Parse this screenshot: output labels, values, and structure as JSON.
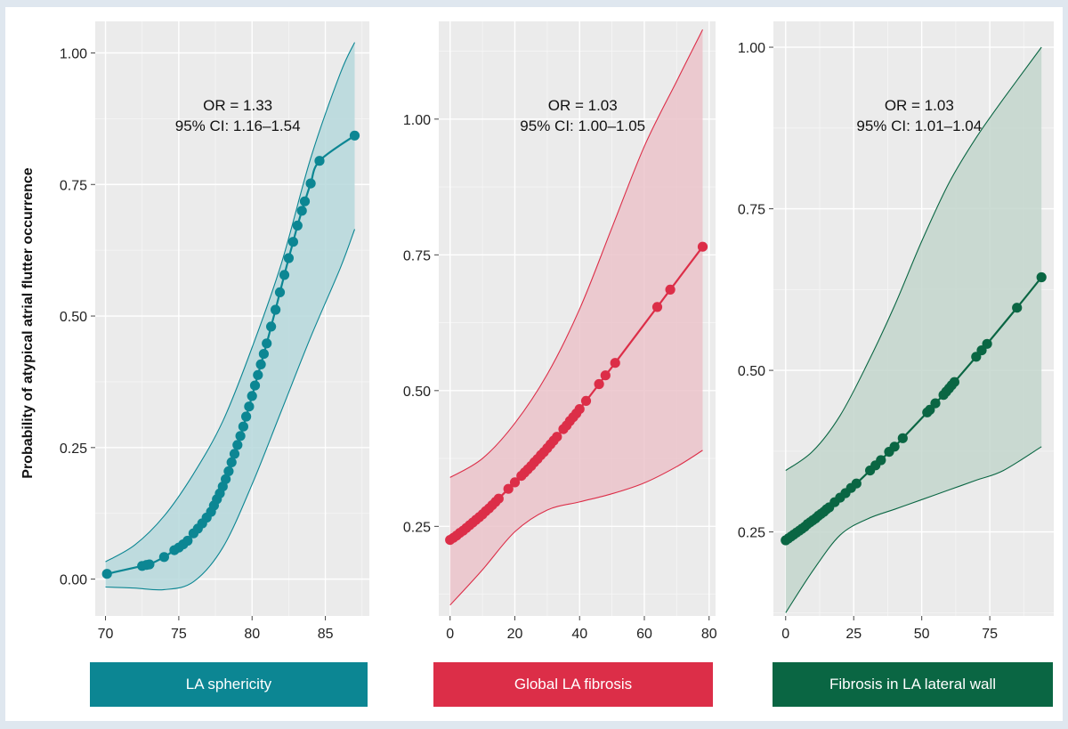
{
  "y_axis_label": "Probability of atypical atrial flutter occurrence",
  "chart_data": [
    {
      "type": "line",
      "name": "la-sphericity",
      "panel_label": "LA sphericity",
      "color": "#0c8693",
      "fill": "#b6d8dc",
      "annotation": [
        "OR = 1.33",
        "95% CI: 1.16–1.54"
      ],
      "xlim": [
        69.3,
        88.0
      ],
      "ylim": [
        -0.07,
        1.06
      ],
      "xticks": [
        70,
        75,
        80,
        85
      ],
      "xtick_labels": [
        "70",
        "75",
        "80",
        "85"
      ],
      "yticks": [
        0,
        0.25,
        0.5,
        0.75,
        1.0
      ],
      "ytick_labels": [
        "0.00",
        "0.25",
        "0.50",
        "0.75",
        "1.00"
      ],
      "points": [
        [
          70.1,
          0.01
        ],
        [
          72.5,
          0.025
        ],
        [
          72.8,
          0.027
        ],
        [
          73.0,
          0.028
        ],
        [
          74.0,
          0.042
        ],
        [
          74.7,
          0.055
        ],
        [
          75.0,
          0.06
        ],
        [
          75.3,
          0.066
        ],
        [
          75.6,
          0.073
        ],
        [
          76.0,
          0.087
        ],
        [
          76.3,
          0.096
        ],
        [
          76.6,
          0.106
        ],
        [
          76.9,
          0.117
        ],
        [
          77.2,
          0.128
        ],
        [
          77.4,
          0.14
        ],
        [
          77.6,
          0.152
        ],
        [
          77.8,
          0.163
        ],
        [
          78.0,
          0.176
        ],
        [
          78.2,
          0.19
        ],
        [
          78.4,
          0.205
        ],
        [
          78.6,
          0.222
        ],
        [
          78.8,
          0.238
        ],
        [
          79.0,
          0.255
        ],
        [
          79.2,
          0.272
        ],
        [
          79.4,
          0.29
        ],
        [
          79.6,
          0.309
        ],
        [
          79.8,
          0.328
        ],
        [
          80.0,
          0.348
        ],
        [
          80.2,
          0.368
        ],
        [
          80.4,
          0.388
        ],
        [
          80.6,
          0.408
        ],
        [
          80.8,
          0.428
        ],
        [
          81.0,
          0.448
        ],
        [
          81.3,
          0.48
        ],
        [
          81.6,
          0.512
        ],
        [
          81.9,
          0.545
        ],
        [
          82.2,
          0.578
        ],
        [
          82.5,
          0.61
        ],
        [
          82.8,
          0.641
        ],
        [
          83.1,
          0.672
        ],
        [
          83.4,
          0.7
        ],
        [
          83.6,
          0.718
        ],
        [
          84.0,
          0.752
        ],
        [
          84.6,
          0.795
        ],
        [
          87.0,
          0.843
        ]
      ],
      "lower": [
        [
          70.0,
          -0.015
        ],
        [
          72.0,
          -0.017
        ],
        [
          74.0,
          -0.02
        ],
        [
          76.0,
          -0.005
        ],
        [
          78.0,
          0.06
        ],
        [
          80.0,
          0.18
        ],
        [
          82.0,
          0.32
        ],
        [
          84.0,
          0.46
        ],
        [
          86.0,
          0.59
        ],
        [
          87.0,
          0.665
        ]
      ],
      "upper": [
        [
          70.0,
          0.033
        ],
        [
          72.0,
          0.065
        ],
        [
          74.0,
          0.12
        ],
        [
          76.0,
          0.2
        ],
        [
          78.0,
          0.3
        ],
        [
          80.0,
          0.44
        ],
        [
          82.0,
          0.6
        ],
        [
          84.0,
          0.8
        ],
        [
          86.0,
          0.96
        ],
        [
          87.0,
          1.02
        ]
      ]
    },
    {
      "type": "line",
      "name": "global-la-fibrosis",
      "panel_label": "Global LA fibrosis",
      "color": "#dc2e48",
      "fill": "#ebc3ca",
      "annotation": [
        "OR = 1.03",
        "95% CI: 1.00–1.05"
      ],
      "xlim": [
        -3.5,
        82.0
      ],
      "ylim": [
        0.085,
        1.18
      ],
      "xticks": [
        0,
        20,
        40,
        60,
        80
      ],
      "xtick_labels": [
        "0",
        "20",
        "40",
        "60",
        "80"
      ],
      "yticks": [
        0.25,
        0.5,
        0.75,
        1.0
      ],
      "ytick_labels": [
        "0.25",
        "0.50",
        "0.75",
        "1.00"
      ],
      "points": [
        [
          0,
          0.225
        ],
        [
          1,
          0.229
        ],
        [
          2,
          0.233
        ],
        [
          3,
          0.238
        ],
        [
          4,
          0.242
        ],
        [
          5,
          0.247
        ],
        [
          6,
          0.252
        ],
        [
          7,
          0.257
        ],
        [
          8,
          0.262
        ],
        [
          9,
          0.267
        ],
        [
          10,
          0.272
        ],
        [
          11,
          0.278
        ],
        [
          12,
          0.283
        ],
        [
          13,
          0.289
        ],
        [
          14,
          0.295
        ],
        [
          15,
          0.301
        ],
        [
          18,
          0.319
        ],
        [
          20,
          0.331
        ],
        [
          22,
          0.343
        ],
        [
          23,
          0.349
        ],
        [
          24,
          0.355
        ],
        [
          25,
          0.361
        ],
        [
          26,
          0.368
        ],
        [
          27,
          0.374
        ],
        [
          28,
          0.381
        ],
        [
          29,
          0.387
        ],
        [
          30,
          0.394
        ],
        [
          31,
          0.401
        ],
        [
          32,
          0.408
        ],
        [
          33,
          0.415
        ],
        [
          35,
          0.429
        ],
        [
          36,
          0.436
        ],
        [
          37,
          0.444
        ],
        [
          38,
          0.451
        ],
        [
          39,
          0.458
        ],
        [
          40,
          0.466
        ],
        [
          42,
          0.481
        ],
        [
          46,
          0.512
        ],
        [
          48,
          0.528
        ],
        [
          51,
          0.551
        ],
        [
          64,
          0.654
        ],
        [
          68,
          0.686
        ],
        [
          78,
          0.765
        ]
      ],
      "lower": [
        [
          0,
          0.105
        ],
        [
          10,
          0.17
        ],
        [
          20,
          0.24
        ],
        [
          30,
          0.28
        ],
        [
          40,
          0.295
        ],
        [
          50,
          0.31
        ],
        [
          60,
          0.33
        ],
        [
          70,
          0.36
        ],
        [
          78,
          0.39
        ]
      ],
      "upper": [
        [
          0,
          0.34
        ],
        [
          10,
          0.375
        ],
        [
          20,
          0.44
        ],
        [
          30,
          0.53
        ],
        [
          40,
          0.65
        ],
        [
          50,
          0.8
        ],
        [
          60,
          0.95
        ],
        [
          70,
          1.07
        ],
        [
          78,
          1.165
        ]
      ]
    },
    {
      "type": "line",
      "name": "fibrosis-la-lateral-wall",
      "panel_label": "Fibrosis in LA lateral wall",
      "color": "#0a6643",
      "fill": "#c3d6cc",
      "annotation": [
        "OR = 1.03",
        "95% CI: 1.01–1.04"
      ],
      "xlim": [
        -4.5,
        98.5
      ],
      "ylim": [
        0.12,
        1.04
      ],
      "xticks": [
        0,
        25,
        50,
        75
      ],
      "xtick_labels": [
        "0",
        "25",
        "50",
        "75"
      ],
      "yticks": [
        0.25,
        0.5,
        0.75,
        1.0
      ],
      "ytick_labels": [
        "0.25",
        "0.50",
        "0.75",
        "1.00"
      ],
      "points": [
        [
          0,
          0.237
        ],
        [
          1,
          0.24
        ],
        [
          2,
          0.243
        ],
        [
          3,
          0.246
        ],
        [
          4,
          0.249
        ],
        [
          5,
          0.252
        ],
        [
          6,
          0.255
        ],
        [
          7,
          0.258
        ],
        [
          8,
          0.262
        ],
        [
          9,
          0.265
        ],
        [
          10,
          0.268
        ],
        [
          11,
          0.271
        ],
        [
          12,
          0.275
        ],
        [
          13,
          0.278
        ],
        [
          14,
          0.281
        ],
        [
          15,
          0.285
        ],
        [
          16,
          0.288
        ],
        [
          18,
          0.296
        ],
        [
          20,
          0.303
        ],
        [
          22,
          0.31
        ],
        [
          24,
          0.318
        ],
        [
          26,
          0.325
        ],
        [
          31,
          0.345
        ],
        [
          33,
          0.353
        ],
        [
          35,
          0.361
        ],
        [
          38,
          0.374
        ],
        [
          40,
          0.382
        ],
        [
          43,
          0.395
        ],
        [
          52,
          0.435
        ],
        [
          53,
          0.439
        ],
        [
          55,
          0.449
        ],
        [
          58,
          0.462
        ],
        [
          59,
          0.467
        ],
        [
          60,
          0.472
        ],
        [
          61,
          0.477
        ],
        [
          62,
          0.482
        ],
        [
          70,
          0.521
        ],
        [
          72,
          0.531
        ],
        [
          74,
          0.541
        ],
        [
          85,
          0.597
        ],
        [
          94,
          0.644
        ]
      ],
      "lower": [
        [
          0,
          0.125
        ],
        [
          10,
          0.19
        ],
        [
          20,
          0.245
        ],
        [
          30,
          0.27
        ],
        [
          40,
          0.285
        ],
        [
          50,
          0.3
        ],
        [
          60,
          0.315
        ],
        [
          70,
          0.33
        ],
        [
          80,
          0.345
        ],
        [
          94,
          0.382
        ]
      ],
      "upper": [
        [
          0,
          0.345
        ],
        [
          10,
          0.375
        ],
        [
          20,
          0.43
        ],
        [
          30,
          0.51
        ],
        [
          40,
          0.6
        ],
        [
          50,
          0.7
        ],
        [
          60,
          0.79
        ],
        [
          70,
          0.86
        ],
        [
          80,
          0.92
        ],
        [
          94,
          1.0
        ]
      ]
    }
  ]
}
